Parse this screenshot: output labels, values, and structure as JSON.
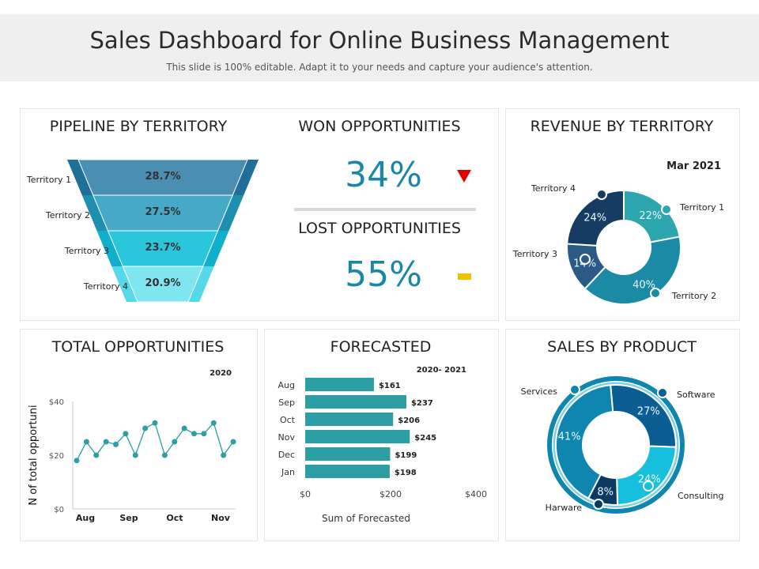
{
  "header": {
    "title": "Sales Dashboard for Online Business Management",
    "subtitle": "This slide is 100% editable. Adapt it to your needs and capture your audience's attention."
  },
  "pipeline": {
    "title": "PIPELINE BY TERRITORY"
  },
  "won": {
    "title": "WON OPPORTUNITIES",
    "value": "34%",
    "indicator": "down-triangle-icon",
    "indicator_color": "#e00000"
  },
  "lost": {
    "title": "LOST OPPORTUNITIES",
    "value": "55%",
    "indicator": "dash-icon",
    "indicator_color": "#f2c000"
  },
  "revenue": {
    "title": "REVENUE BY TERRITORY"
  },
  "total": {
    "title": "TOTAL OPPORTUNITIES"
  },
  "forecast": {
    "title": "FORECASTED"
  },
  "product": {
    "title": "SALES BY PRODUCT"
  },
  "chart_data": [
    {
      "type": "funnel",
      "categories": [
        "Territory 1",
        "Territory 2",
        "Territory 3",
        "Territory 4"
      ],
      "values": [
        28.7,
        27.5,
        23.7,
        20.9
      ],
      "labels": [
        "28.7%",
        "27.5%",
        "23.7%",
        "20.9%"
      ],
      "colors": [
        "#4a8fb2",
        "#46a9c6",
        "#2ac6dc",
        "#7fe6f0"
      ]
    },
    {
      "type": "pie",
      "subtitle": "Mar 2021",
      "categories": [
        "Territory 1",
        "Territory 2",
        "Territory 3",
        "Territory 4"
      ],
      "values": [
        22,
        40,
        14,
        24
      ],
      "labels": [
        "22%",
        "40%",
        "14%",
        "24%"
      ],
      "colors": [
        "#2ea6b0",
        "#1a8aa5",
        "#2a5a85",
        "#173c63"
      ]
    },
    {
      "type": "line",
      "subtitle": "2020",
      "ylabel": "N of total opportuni",
      "ylim": [
        0,
        40
      ],
      "yticks": [
        "$0",
        "$20",
        "$40"
      ],
      "xticks": [
        "Aug",
        "Sep",
        "Oct",
        "Nov"
      ],
      "values": [
        18,
        25,
        20,
        25,
        24,
        28,
        20,
        30,
        32,
        20,
        25,
        30,
        28,
        28,
        32,
        20,
        25
      ],
      "color": "#2e9ea5"
    },
    {
      "type": "bar",
      "orientation": "horizontal",
      "subtitle": "2020- 2021",
      "xlabel": "Sum of Forecasted",
      "categories": [
        "Aug",
        "Sep",
        "Oct",
        "Nov",
        "Dec",
        "Jan"
      ],
      "values": [
        161,
        237,
        206,
        245,
        199,
        198
      ],
      "labels": [
        "$161",
        "$237",
        "$206",
        "$245",
        "$199",
        "$198"
      ],
      "xlim": [
        0,
        400
      ],
      "xticks": [
        "$0",
        "$200",
        "$400"
      ],
      "color": "#2e9ea5"
    },
    {
      "type": "pie",
      "categories": [
        "Software",
        "Consulting",
        "Harware",
        "Services"
      ],
      "values": [
        27,
        24,
        8,
        41
      ],
      "labels": [
        "27%",
        "24%",
        "8%",
        "41%"
      ],
      "colors": [
        "#0a5e94",
        "#16c0dc",
        "#0c3a63",
        "#0e86b0"
      ]
    }
  ]
}
